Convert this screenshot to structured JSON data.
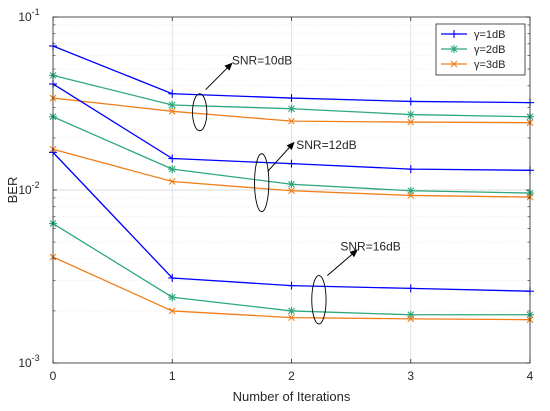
{
  "chart_data": {
    "type": "line",
    "title": "",
    "xlabel": "Number of Iterations",
    "ylabel": "BER",
    "x": [
      0,
      1,
      2,
      3,
      4
    ],
    "xlim": [
      0,
      4
    ],
    "ylim": [
      0.001,
      0.1
    ],
    "yscale": "log",
    "grid": true,
    "legend_position": "top-right",
    "x_ticks": [
      "0",
      "1",
      "2",
      "3",
      "4"
    ],
    "y_ticks": [
      {
        "value": 0.1,
        "base": "10",
        "exp": "-1"
      },
      {
        "value": 0.01,
        "base": "10",
        "exp": "-2"
      },
      {
        "value": 0.001,
        "base": "10",
        "exp": "-3"
      }
    ],
    "legend": [
      {
        "label": "γ=1dB",
        "color": "#0000ff",
        "marker": "plus"
      },
      {
        "label": "γ=2dB",
        "color": "#2ca87a",
        "marker": "star"
      },
      {
        "label": "γ=3dB",
        "color": "#f07f1a",
        "marker": "x"
      }
    ],
    "series": [
      {
        "gamma": "γ=1dB",
        "snr": "SNR=10dB",
        "color": "#0000ff",
        "marker": "plus",
        "values": [
          0.068,
          0.036,
          0.034,
          0.0325,
          0.032
        ]
      },
      {
        "gamma": "γ=2dB",
        "snr": "SNR=10dB",
        "color": "#2ca87a",
        "marker": "star",
        "values": [
          0.046,
          0.031,
          0.0295,
          0.0273,
          0.0265
        ]
      },
      {
        "gamma": "γ=3dB",
        "snr": "SNR=10dB",
        "color": "#f07f1a",
        "marker": "x",
        "values": [
          0.034,
          0.0285,
          0.025,
          0.0247,
          0.0245
        ]
      },
      {
        "gamma": "γ=1dB",
        "snr": "SNR=12dB",
        "color": "#0000ff",
        "marker": "plus",
        "values": [
          0.041,
          0.0152,
          0.0142,
          0.0132,
          0.013
        ]
      },
      {
        "gamma": "γ=2dB",
        "snr": "SNR=12dB",
        "color": "#2ca87a",
        "marker": "star",
        "values": [
          0.0265,
          0.0132,
          0.0108,
          0.0099,
          0.0096
        ]
      },
      {
        "gamma": "γ=3dB",
        "snr": "SNR=12dB",
        "color": "#f07f1a",
        "marker": "x",
        "values": [
          0.0172,
          0.0112,
          0.0099,
          0.0093,
          0.0091
        ]
      },
      {
        "gamma": "γ=1dB",
        "snr": "SNR=16dB",
        "color": "#0000ff",
        "marker": "plus",
        "values": [
          0.0165,
          0.0031,
          0.0028,
          0.0027,
          0.0026
        ]
      },
      {
        "gamma": "γ=2dB",
        "snr": "SNR=16dB",
        "color": "#2ca87a",
        "marker": "star",
        "values": [
          0.0064,
          0.0024,
          0.002,
          0.0019,
          0.0019
        ]
      },
      {
        "gamma": "γ=3dB",
        "snr": "SNR=16dB",
        "color": "#f07f1a",
        "marker": "x",
        "values": [
          0.0041,
          0.002,
          0.00183,
          0.0018,
          0.00178
        ]
      }
    ],
    "annotations": [
      {
        "text": "SNR=10dB",
        "ellipse_center": [
          1.23,
          0.0285
        ],
        "ellipse_rx": 0.06,
        "ellipse_y": [
          0.036,
          0.022
        ],
        "arrow_from": [
          1.28,
          0.038
        ],
        "arrow_to": [
          1.5,
          0.054
        ],
        "text_pos": [
          1.5,
          0.056
        ]
      },
      {
        "text": "SNR=12dB",
        "ellipse_center": [
          1.75,
          0.0112
        ],
        "ellipse_rx": 0.06,
        "ellipse_y": [
          0.0162,
          0.0075
        ],
        "arrow_from": [
          1.8,
          0.0128
        ],
        "arrow_to": [
          2.02,
          0.0188
        ],
        "text_pos": [
          2.04,
          0.0182
        ]
      },
      {
        "text": "SNR=16dB",
        "ellipse_center": [
          2.23,
          0.00238
        ],
        "ellipse_rx": 0.06,
        "ellipse_y": [
          0.0032,
          0.00168
        ],
        "arrow_from": [
          2.3,
          0.0032
        ],
        "arrow_to": [
          2.55,
          0.0045
        ],
        "text_pos": [
          2.41,
          0.0047
        ]
      }
    ]
  }
}
